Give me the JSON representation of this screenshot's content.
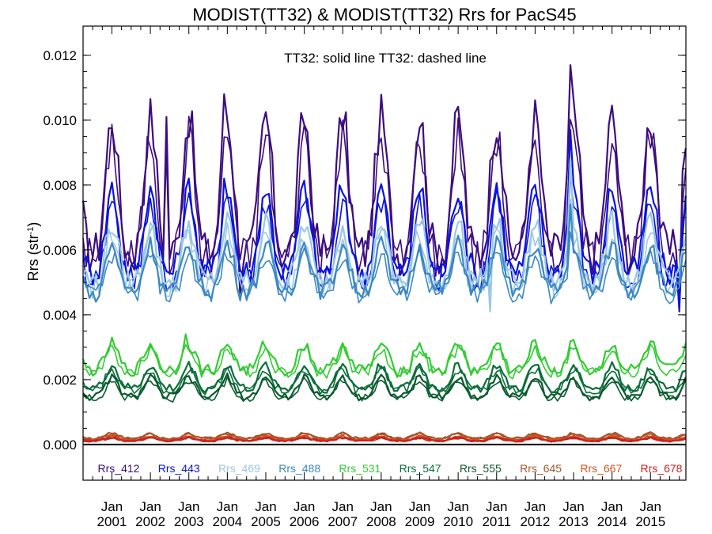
{
  "chart_data": {
    "type": "line",
    "title": "MODIST(TT32) & MODIST(TT32)  Rrs for PacS45",
    "ylabel_main": "Rrs (str",
    "ylabel_sup": "-1",
    "ylabel_tail": ")",
    "annotation": "TT32: solid line   TT32: dashed line",
    "xlim": [
      2000.25,
      2015.92
    ],
    "ylim": [
      -0.0011,
      0.0129
    ],
    "yticks": [
      "0.000",
      "0.002",
      "0.004",
      "0.006",
      "0.008",
      "0.010",
      "0.012"
    ],
    "ytick_values": [
      0.0,
      0.002,
      0.004,
      0.006,
      0.008,
      0.01,
      0.012
    ],
    "xticks_month": [
      "Jan",
      "Jan",
      "Jan",
      "Jan",
      "Jan",
      "Jan",
      "Jan",
      "Jan",
      "Jan",
      "Jan",
      "Jan",
      "Jan",
      "Jan",
      "Jan",
      "Jan"
    ],
    "xticks_year": [
      "2001",
      "2002",
      "2003",
      "2004",
      "2005",
      "2006",
      "2007",
      "2008",
      "2009",
      "2010",
      "2011",
      "2012",
      "2013",
      "2014",
      "2015"
    ],
    "xtick_values": [
      2001,
      2002,
      2003,
      2004,
      2005,
      2006,
      2007,
      2008,
      2009,
      2010,
      2011,
      2012,
      2013,
      2014,
      2015
    ],
    "grid": false,
    "legend_position": "bottom",
    "zero_line": true,
    "series": [
      {
        "name": "Rrs_412",
        "color": "#3d0d7f",
        "base": 0.0075,
        "amp": 0.0021,
        "noise": 0.0007,
        "spikes": [
          [
            2003.9,
            0.0108
          ],
          [
            2012.9,
            0.0117
          ],
          [
            2002.4,
            0.0101
          ],
          [
            2004.3,
            0.0045
          ],
          [
            2015.75,
            0.0041
          ]
        ]
      },
      {
        "name": "Rrs_443",
        "color": "#0a14e0",
        "base": 0.0063,
        "amp": 0.0013,
        "noise": 0.00045,
        "spikes": [
          [
            2003.9,
            0.0082
          ],
          [
            2012.9,
            0.0097
          ],
          [
            2015.75,
            0.0042
          ]
        ]
      },
      {
        "name": "Rrs_469",
        "color": "#9ac8e4",
        "base": 0.0057,
        "amp": 0.0009,
        "noise": 0.0004,
        "spikes": [
          [
            2012.9,
            0.0088
          ],
          [
            2010.8,
            0.0041
          ]
        ]
      },
      {
        "name": "Rrs_488",
        "color": "#3c88c2",
        "base": 0.0053,
        "amp": 0.0007,
        "noise": 0.0003,
        "spikes": [
          [
            2012.9,
            0.0074
          ],
          [
            2000.6,
            0.0044
          ]
        ]
      },
      {
        "name": "Rrs_531",
        "color": "#33cc33",
        "base": 0.0026,
        "amp": 0.0004,
        "noise": 0.0002,
        "spikes": [
          [
            2002.9,
            0.0034
          ]
        ]
      },
      {
        "name": "Rrs_547",
        "color": "#0b6e3a",
        "base": 0.002,
        "amp": 0.00035,
        "noise": 0.00015,
        "spikes": []
      },
      {
        "name": "Rrs_555",
        "color": "#0b5a2e",
        "base": 0.0017,
        "amp": 0.0003,
        "noise": 0.00012,
        "spikes": []
      },
      {
        "name": "Rrs_645",
        "color": "#a8552a",
        "base": 0.00025,
        "amp": 8e-05,
        "noise": 4e-05,
        "spikes": []
      },
      {
        "name": "Rrs_667",
        "color": "#d2521a",
        "base": 0.00018,
        "amp": 6e-05,
        "noise": 3e-05,
        "spikes": []
      },
      {
        "name": "Rrs_678",
        "color": "#cc2222",
        "base": 0.00015,
        "amp": 5e-05,
        "noise": 3e-05,
        "spikes": []
      }
    ]
  }
}
